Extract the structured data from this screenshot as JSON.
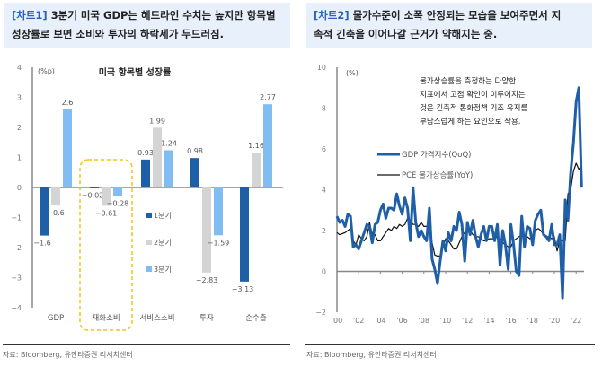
{
  "left": {
    "tag": "[차트1]",
    "title_line1": " 3분기 미국 GDP는 헤드라인 수치는 높지만 항목별",
    "title_line2": "성장률로 보면 소비와 투자의 하락세가 두드러짐.",
    "source": "자료: Bloomberg, 유안타증권 리서치센터"
  },
  "right": {
    "tag": "[차트2]",
    "title_line1": " 물가수준이 소폭 안정되는 모습을 보여주면서 지",
    "title_line2": "속적 긴축을 이어나갈 근거가 약해지는 중.",
    "source": "자료: Bloomberg, 유안타증권 리서치센터"
  },
  "chart_data": [
    {
      "type": "bar",
      "title": "미국 항목별 성장률",
      "ylabel": "(%p)",
      "ylim": [
        -4,
        4
      ],
      "yticks": [
        -4,
        -3,
        -2,
        -1,
        0,
        1,
        2,
        3,
        4
      ],
      "categories": [
        "GDP",
        "재화소비",
        "서비스소비",
        "투자",
        "순수출"
      ],
      "series": [
        {
          "name": "1분기",
          "color": "#1f5fa8",
          "values": [
            -1.6,
            -0.02,
            0.93,
            0.98,
            -3.13
          ]
        },
        {
          "name": "2분기",
          "color": "#d4d4d4",
          "values": [
            -0.6,
            -0.61,
            1.99,
            -2.83,
            1.16
          ]
        },
        {
          "name": "3분기",
          "color": "#7fbdf2",
          "values": [
            2.6,
            -0.28,
            1.24,
            -1.59,
            2.77
          ]
        }
      ],
      "highlight": "재화소비",
      "highlight_color": "#f0c419",
      "legend": "center"
    },
    {
      "type": "line",
      "ylabel": "(%)",
      "ylim": [
        -2,
        10
      ],
      "yticks": [
        -2,
        0,
        2,
        4,
        6,
        8,
        10
      ],
      "xticks": [
        "'00",
        "'02",
        "'04",
        "'06",
        "'08",
        "'10",
        "'12",
        "'14",
        "'16",
        "'18",
        "'20",
        "'22"
      ],
      "x_start": "2000Q1",
      "frequency": "quarterly",
      "annotation": [
        "물가상승률을 측정하는 다양한",
        "지표에서 고점 확인이 이루어지는",
        "것은 긴축적 통화정책 기조 유지를",
        "부담스럽게 하는 요인으로 작용."
      ],
      "series": [
        {
          "name": "GDP 가격지수(QoQ)",
          "color": "#1f5fa8",
          "values": [
            2.7,
            2.4,
            2.5,
            2.2,
            2.8,
            2.7,
            1.2,
            1.3,
            1.1,
            1.5,
            1.9,
            2.3,
            2.2,
            1.4,
            2.3,
            2.4,
            3.0,
            3.3,
            2.6,
            3.1,
            3.1,
            3.0,
            3.8,
            3.2,
            2.8,
            3.6,
            3.1,
            1.5,
            4.1,
            2.4,
            1.7,
            2.0,
            1.7,
            1.5,
            3.1,
            0.6,
            0.1,
            -0.6,
            0.5,
            1.5,
            1.0,
            1.9,
            1.5,
            2.2,
            2.0,
            2.9,
            2.3,
            0.5,
            2.4,
            1.8,
            2.5,
            1.7,
            1.2,
            1.8,
            2.2,
            1.5,
            2.2,
            2.2,
            1.5,
            2.3,
            0.3,
            2.0,
            1.3,
            0.1,
            2.3,
            1.3,
            0.0,
            -0.2,
            2.7,
            1.2,
            2.2,
            2.1,
            1.3,
            2.5,
            2.8,
            3.0,
            1.8,
            1.7,
            1.5,
            2.3,
            1.3,
            1.3,
            1.8,
            -1.3,
            3.5,
            2.5,
            4.8,
            6.3,
            8.3,
            9.0,
            4.1
          ]
        },
        {
          "name": "PCE 물가상승률(YoY)",
          "color": "#111111",
          "values": [
            1.9,
            1.8,
            1.85,
            1.9,
            2.0,
            2.1,
            1.5,
            1.3,
            1.8,
            1.6,
            1.5,
            1.7,
            2.4,
            1.8,
            1.8,
            1.5,
            1.5,
            1.7,
            1.9,
            2.1,
            2.0,
            2.2,
            2.1,
            2.3,
            2.2,
            2.3,
            2.6,
            2.5,
            2.3,
            2.3,
            2.2,
            2.4,
            2.2,
            2.2,
            2.2,
            1.4,
            0.8,
            0.75,
            0.75,
            1.2,
            1.6,
            1.5,
            1.3,
            1.1,
            1.1,
            1.4,
            1.7,
            1.9,
            2.0,
            2.0,
            1.8,
            1.7,
            1.7,
            1.6,
            1.5,
            1.5,
            1.6,
            1.6,
            1.6,
            1.7,
            1.6,
            1.4,
            1.3,
            1.2,
            1.2,
            1.5,
            1.6,
            1.7,
            1.8,
            1.8,
            1.7,
            1.6,
            1.7,
            2.0,
            2.1,
            2.0,
            1.8,
            1.7,
            1.7,
            1.6,
            1.7,
            1.0,
            1.5,
            1.5,
            1.5,
            3.8,
            4.0,
            4.9,
            5.3,
            5.0,
            5.2
          ]
        }
      ]
    }
  ]
}
